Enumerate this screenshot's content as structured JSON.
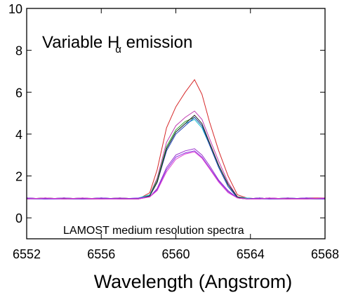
{
  "chart_data": {
    "type": "line",
    "title": "",
    "annotation_main": "Variable H",
    "annotation_sub": "α",
    "annotation_rest": " emission",
    "annotation_bottom": "LAMOST medium resolution spectra",
    "xlabel": "Wavelength (Angstrom)",
    "ylabel": "",
    "xlim": [
      6552,
      6568
    ],
    "ylim": [
      -1,
      10
    ],
    "xticks": [
      6552,
      6556,
      6560,
      6564,
      6568
    ],
    "yticks": [
      0,
      2,
      4,
      6,
      8,
      10
    ],
    "grid": false,
    "legend": "none",
    "profile_x": [
      6552,
      6553,
      6554,
      6555,
      6556,
      6557,
      6558,
      6558.6,
      6559,
      6559.5,
      6560,
      6560.5,
      6561,
      6561.4,
      6561.8,
      6562.3,
      6562.8,
      6563.3,
      6563.8,
      6564.5,
      6565,
      6566,
      6567,
      6568
    ],
    "series": [
      {
        "color": "#d62728",
        "values": [
          0.95,
          0.9,
          0.95,
          0.9,
          0.9,
          0.95,
          0.9,
          1.2,
          2.3,
          4.3,
          5.3,
          6.0,
          6.6,
          5.9,
          4.6,
          3.2,
          2.0,
          1.1,
          0.95,
          0.9,
          0.95,
          0.9,
          0.95,
          0.95
        ]
      },
      {
        "color": "#c03bb0",
        "values": [
          0.95,
          0.9,
          0.95,
          0.9,
          0.9,
          0.9,
          0.9,
          1.1,
          1.9,
          3.6,
          4.4,
          4.8,
          5.1,
          4.7,
          3.8,
          2.7,
          1.7,
          1.0,
          0.9,
          0.9,
          0.95,
          0.9,
          0.9,
          0.95
        ]
      },
      {
        "color": "#2ca02c",
        "values": [
          0.9,
          0.95,
          0.9,
          0.95,
          0.9,
          0.95,
          0.9,
          1.1,
          1.8,
          3.4,
          4.2,
          4.6,
          4.8,
          4.4,
          3.6,
          2.5,
          1.6,
          1.0,
          0.9,
          0.95,
          0.9,
          0.95,
          0.9,
          0.9
        ]
      },
      {
        "color": "#17becf",
        "values": [
          0.9,
          0.9,
          0.95,
          0.9,
          0.95,
          0.9,
          0.95,
          1.1,
          1.7,
          3.3,
          4.1,
          4.5,
          4.7,
          4.3,
          3.5,
          2.4,
          1.5,
          1.0,
          0.95,
          0.9,
          0.9,
          0.95,
          0.9,
          0.9
        ]
      },
      {
        "color": "#1f3fb4",
        "values": [
          0.95,
          0.9,
          0.9,
          0.95,
          0.9,
          0.9,
          0.9,
          1.05,
          1.7,
          3.2,
          4.0,
          4.4,
          4.8,
          4.4,
          3.5,
          2.4,
          1.5,
          0.95,
          0.9,
          0.9,
          0.95,
          0.9,
          0.95,
          0.9
        ]
      },
      {
        "color": "#222222",
        "values": [
          0.9,
          0.95,
          0.9,
          0.9,
          0.95,
          0.9,
          0.9,
          1.05,
          1.7,
          3.3,
          4.1,
          4.5,
          4.9,
          4.5,
          3.6,
          2.5,
          1.6,
          1.0,
          0.9,
          0.95,
          0.9,
          0.9,
          0.9,
          0.95
        ]
      },
      {
        "color": "#9932cc",
        "values": [
          0.9,
          0.9,
          0.95,
          0.9,
          0.9,
          0.95,
          0.9,
          1.0,
          1.4,
          2.4,
          3.0,
          3.2,
          3.3,
          3.0,
          2.5,
          1.8,
          1.3,
          0.95,
          0.9,
          0.9,
          0.9,
          0.95,
          0.9,
          0.9
        ]
      },
      {
        "color": "#8a2be2",
        "values": [
          0.95,
          0.9,
          0.9,
          0.9,
          0.95,
          0.9,
          0.95,
          1.0,
          1.35,
          2.3,
          2.9,
          3.1,
          3.2,
          2.9,
          2.4,
          1.75,
          1.25,
          0.95,
          0.9,
          0.95,
          0.9,
          0.9,
          0.95,
          0.9
        ]
      },
      {
        "color": "#e040d0",
        "values": [
          0.9,
          0.95,
          0.9,
          0.95,
          0.9,
          0.9,
          0.9,
          1.0,
          1.3,
          2.2,
          2.8,
          3.05,
          3.15,
          2.85,
          2.35,
          1.7,
          1.2,
          0.95,
          0.9,
          0.9,
          0.95,
          0.9,
          0.9,
          0.95
        ]
      }
    ]
  }
}
